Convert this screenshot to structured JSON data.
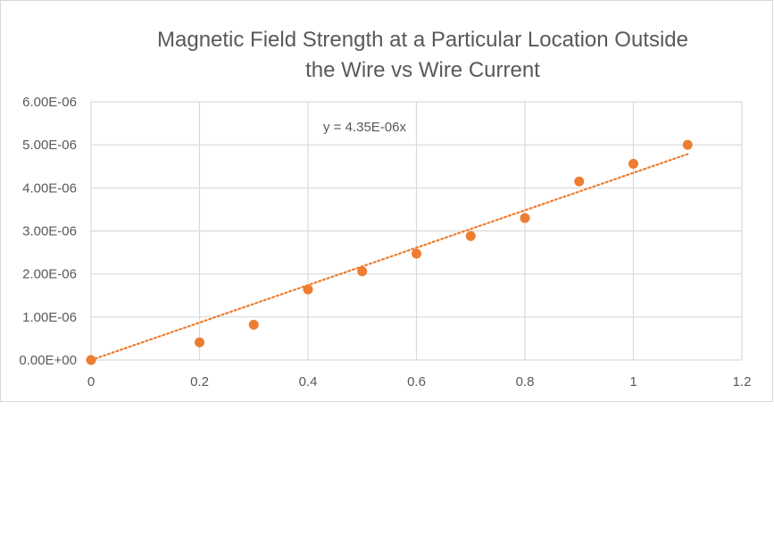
{
  "chart_data": {
    "type": "scatter",
    "title_lines": [
      "Magnetic Field Strength at a Particular Location Outside",
      "the Wire vs Wire Current"
    ],
    "xlabel": "",
    "ylabel": "",
    "xlim": [
      0,
      1.2
    ],
    "ylim": [
      0,
      6e-06
    ],
    "x_ticks": [
      "0",
      "0.2",
      "0.4",
      "0.6",
      "0.8",
      "1",
      "1.2"
    ],
    "y_ticks": [
      "0.00E+00",
      "1.00E-06",
      "2.00E-06",
      "3.00E-06",
      "4.00E-06",
      "5.00E-06",
      "6.00E-06"
    ],
    "grid": true,
    "series": [
      {
        "x": [
          0,
          0.2,
          0.3,
          0.4,
          0.5,
          0.6,
          0.7,
          0.8,
          0.9,
          1.0,
          1.1
        ],
        "y": [
          0,
          4.1e-07,
          8.2e-07,
          1.64e-06,
          2.06e-06,
          2.47e-06,
          2.88e-06,
          3.3e-06,
          4.15e-06,
          4.56e-06,
          5e-06
        ],
        "color": "#ED7D31"
      }
    ],
    "trendline": {
      "type": "linear",
      "slope": 4.35e-06,
      "intercept": 0,
      "x_range": [
        0,
        1.1
      ],
      "color": "#ED7D31",
      "style": "dotted",
      "equation_label": "y = 4.35E-06x"
    }
  }
}
